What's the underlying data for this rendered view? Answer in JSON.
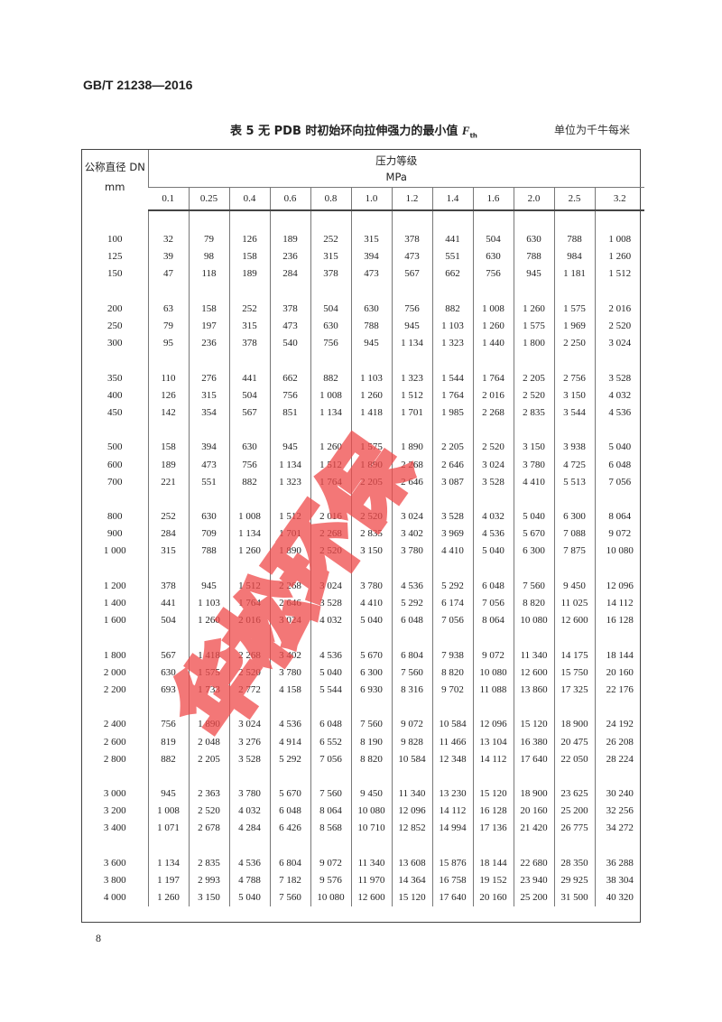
{
  "header": {
    "standard": "GB/T 21238—2016"
  },
  "table": {
    "caption_prefix": "表 5  无 PDB 时初始环向拉伸强力的最小值 ",
    "caption_symbol": "F",
    "caption_sub": "th",
    "unit": "单位为千牛每米",
    "dn_header_line1": "公称直径 DN",
    "dn_header_line2": "mm",
    "pressure_header_line1": "压力等级",
    "pressure_header_line2": "MPa",
    "pressures": [
      "0.1",
      "0.25",
      "0.4",
      "0.6",
      "0.8",
      "1.0",
      "1.2",
      "1.4",
      "1.6",
      "2.0",
      "2.5",
      "3.2"
    ],
    "groups": [
      [
        [
          "100",
          "32",
          "79",
          "126",
          "189",
          "252",
          "315",
          "378",
          "441",
          "504",
          "630",
          "788",
          "1 008"
        ],
        [
          "125",
          "39",
          "98",
          "158",
          "236",
          "315",
          "394",
          "473",
          "551",
          "630",
          "788",
          "984",
          "1 260"
        ],
        [
          "150",
          "47",
          "118",
          "189",
          "284",
          "378",
          "473",
          "567",
          "662",
          "756",
          "945",
          "1 181",
          "1 512"
        ]
      ],
      [
        [
          "200",
          "63",
          "158",
          "252",
          "378",
          "504",
          "630",
          "756",
          "882",
          "1 008",
          "1 260",
          "1 575",
          "2 016"
        ],
        [
          "250",
          "79",
          "197",
          "315",
          "473",
          "630",
          "788",
          "945",
          "1 103",
          "1 260",
          "1 575",
          "1 969",
          "2 520"
        ],
        [
          "300",
          "95",
          "236",
          "378",
          "540",
          "756",
          "945",
          "1 134",
          "1 323",
          "1 440",
          "1 800",
          "2 250",
          "3 024"
        ]
      ],
      [
        [
          "350",
          "110",
          "276",
          "441",
          "662",
          "882",
          "1 103",
          "1 323",
          "1 544",
          "1 764",
          "2 205",
          "2 756",
          "3 528"
        ],
        [
          "400",
          "126",
          "315",
          "504",
          "756",
          "1 008",
          "1 260",
          "1 512",
          "1 764",
          "2 016",
          "2 520",
          "3 150",
          "4 032"
        ],
        [
          "450",
          "142",
          "354",
          "567",
          "851",
          "1 134",
          "1 418",
          "1 701",
          "1 985",
          "2 268",
          "2 835",
          "3 544",
          "4 536"
        ]
      ],
      [
        [
          "500",
          "158",
          "394",
          "630",
          "945",
          "1 260",
          "1 575",
          "1 890",
          "2 205",
          "2 520",
          "3 150",
          "3 938",
          "5 040"
        ],
        [
          "600",
          "189",
          "473",
          "756",
          "1 134",
          "1 512",
          "1 890",
          "2 268",
          "2 646",
          "3 024",
          "3 780",
          "4 725",
          "6 048"
        ],
        [
          "700",
          "221",
          "551",
          "882",
          "1 323",
          "1 764",
          "2 205",
          "2 646",
          "3 087",
          "3 528",
          "4 410",
          "5 513",
          "7 056"
        ]
      ],
      [
        [
          "800",
          "252",
          "630",
          "1 008",
          "1 512",
          "2 016",
          "2 520",
          "3 024",
          "3 528",
          "4 032",
          "5 040",
          "6 300",
          "8 064"
        ],
        [
          "900",
          "284",
          "709",
          "1 134",
          "1 701",
          "2 268",
          "2 835",
          "3 402",
          "3 969",
          "4 536",
          "5 670",
          "7 088",
          "9 072"
        ],
        [
          "1 000",
          "315",
          "788",
          "1 260",
          "1 890",
          "2 520",
          "3 150",
          "3 780",
          "4 410",
          "5 040",
          "6 300",
          "7 875",
          "10 080"
        ]
      ],
      [
        [
          "1 200",
          "378",
          "945",
          "1 512",
          "2 268",
          "3 024",
          "3 780",
          "4 536",
          "5 292",
          "6 048",
          "7 560",
          "9 450",
          "12 096"
        ],
        [
          "1 400",
          "441",
          "1 103",
          "1 764",
          "2 646",
          "3 528",
          "4 410",
          "5 292",
          "6 174",
          "7 056",
          "8 820",
          "11 025",
          "14 112"
        ],
        [
          "1 600",
          "504",
          "1 260",
          "2 016",
          "3 024",
          "4 032",
          "5 040",
          "6 048",
          "7 056",
          "8 064",
          "10 080",
          "12 600",
          "16 128"
        ]
      ],
      [
        [
          "1 800",
          "567",
          "1 418",
          "2 268",
          "3 402",
          "4 536",
          "5 670",
          "6 804",
          "7 938",
          "9 072",
          "11 340",
          "14 175",
          "18 144"
        ],
        [
          "2 000",
          "630",
          "1 575",
          "2 520",
          "3 780",
          "5 040",
          "6 300",
          "7 560",
          "8 820",
          "10 080",
          "12 600",
          "15 750",
          "20 160"
        ],
        [
          "2 200",
          "693",
          "1 733",
          "2 772",
          "4 158",
          "5 544",
          "6 930",
          "8 316",
          "9 702",
          "11 088",
          "13 860",
          "17 325",
          "22 176"
        ]
      ],
      [
        [
          "2 400",
          "756",
          "1 890",
          "3 024",
          "4 536",
          "6 048",
          "7 560",
          "9 072",
          "10 584",
          "12 096",
          "15 120",
          "18 900",
          "24 192"
        ],
        [
          "2 600",
          "819",
          "2 048",
          "3 276",
          "4 914",
          "6 552",
          "8 190",
          "9 828",
          "11 466",
          "13 104",
          "16 380",
          "20 475",
          "26 208"
        ],
        [
          "2 800",
          "882",
          "2 205",
          "3 528",
          "5 292",
          "7 056",
          "8 820",
          "10 584",
          "12 348",
          "14 112",
          "17 640",
          "22 050",
          "28 224"
        ]
      ],
      [
        [
          "3 000",
          "945",
          "2 363",
          "3 780",
          "5 670",
          "7 560",
          "9 450",
          "11 340",
          "13 230",
          "15 120",
          "18 900",
          "23 625",
          "30 240"
        ],
        [
          "3 200",
          "1 008",
          "2 520",
          "4 032",
          "6 048",
          "8 064",
          "10 080",
          "12 096",
          "14 112",
          "16 128",
          "20 160",
          "25 200",
          "32 256"
        ],
        [
          "3 400",
          "1 071",
          "2 678",
          "4 284",
          "6 426",
          "8 568",
          "10 710",
          "12 852",
          "14 994",
          "17 136",
          "21 420",
          "26 775",
          "34 272"
        ]
      ],
      [
        [
          "3 600",
          "1 134",
          "2 835",
          "4 536",
          "6 804",
          "9 072",
          "11 340",
          "13 608",
          "15 876",
          "18 144",
          "22 680",
          "28 350",
          "36 288"
        ],
        [
          "3 800",
          "1 197",
          "2 993",
          "4 788",
          "7 182",
          "9 576",
          "11 970",
          "14 364",
          "16 758",
          "19 152",
          "23 940",
          "29 925",
          "38 304"
        ],
        [
          "4 000",
          "1 260",
          "3 150",
          "5 040",
          "7 560",
          "10 080",
          "12 600",
          "15 120",
          "17 640",
          "20 160",
          "25 200",
          "31 500",
          "40 320"
        ]
      ]
    ]
  },
  "footer": {
    "page_number": "8"
  },
  "watermark": {
    "text": "华松环保",
    "color": "#f04a4a"
  }
}
